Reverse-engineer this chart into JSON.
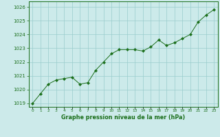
{
  "x": [
    0,
    1,
    2,
    3,
    4,
    5,
    6,
    7,
    8,
    9,
    10,
    11,
    12,
    13,
    14,
    15,
    16,
    17,
    18,
    19,
    20,
    21,
    22,
    23
  ],
  "y": [
    1019.0,
    1019.7,
    1020.4,
    1020.7,
    1020.8,
    1020.9,
    1020.4,
    1020.5,
    1021.4,
    1022.0,
    1022.6,
    1022.9,
    1022.9,
    1022.9,
    1022.8,
    1023.1,
    1023.6,
    1023.2,
    1023.4,
    1023.7,
    1024.0,
    1024.9,
    1025.4,
    1025.8
  ],
  "line_color": "#1a6e1a",
  "marker": "D",
  "marker_size": 2.2,
  "bg_color": "#cceaea",
  "grid_color": "#99cccc",
  "title": "Graphe pression niveau de la mer (hPa)",
  "title_color": "#1a6e1a",
  "xlabel_ticks": [
    "0",
    "1",
    "2",
    "3",
    "4",
    "5",
    "6",
    "7",
    "8",
    "9",
    "10",
    "11",
    "12",
    "13",
    "14",
    "15",
    "16",
    "17",
    "18",
    "19",
    "20",
    "21",
    "22",
    "23"
  ],
  "ylim": [
    1018.75,
    1026.4
  ],
  "yticks": [
    1019,
    1020,
    1021,
    1022,
    1023,
    1024,
    1025,
    1026
  ]
}
